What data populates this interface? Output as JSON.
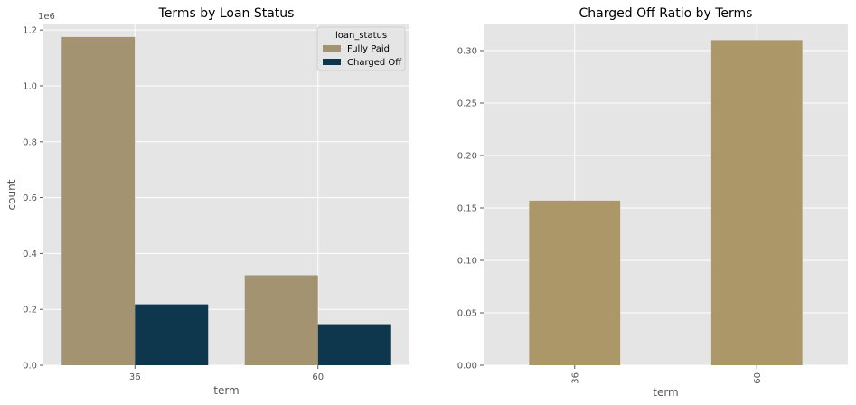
{
  "chart_data": [
    {
      "type": "bar",
      "title": "Terms by Loan Status",
      "xlabel": "term",
      "ylabel": "count",
      "offset_label": "1e6",
      "categories": [
        "36",
        "60"
      ],
      "series": [
        {
          "name": "Fully Paid",
          "values": [
            1.175,
            0.322
          ],
          "color": "#a39370"
        },
        {
          "name": "Charged Off",
          "values": [
            0.218,
            0.147
          ],
          "color": "#0e364d"
        }
      ],
      "ylim": [
        0,
        1.22
      ],
      "yticks": [
        "0.0",
        "0.2",
        "0.4",
        "0.6",
        "0.8",
        "1.0",
        "1.2"
      ],
      "ytick_values": [
        0,
        0.2,
        0.4,
        0.6,
        0.8,
        1.0,
        1.2
      ],
      "legend": {
        "title": "loan_status",
        "placement": "top-right"
      },
      "grid": true,
      "background": "#e5e5e5"
    },
    {
      "type": "bar",
      "title": "Charged Off Ratio by Terms",
      "xlabel": "term",
      "ylabel": "",
      "categories": [
        "36",
        "60"
      ],
      "values": [
        0.157,
        0.31
      ],
      "color": "#ab9767",
      "ylim": [
        0,
        0.325
      ],
      "yticks": [
        "0.00",
        "0.05",
        "0.10",
        "0.15",
        "0.20",
        "0.25",
        "0.30"
      ],
      "ytick_values": [
        0,
        0.05,
        0.1,
        0.15,
        0.2,
        0.25,
        0.3
      ],
      "xtick_rotation": 90,
      "grid": true,
      "background": "#e5e5e5"
    }
  ]
}
